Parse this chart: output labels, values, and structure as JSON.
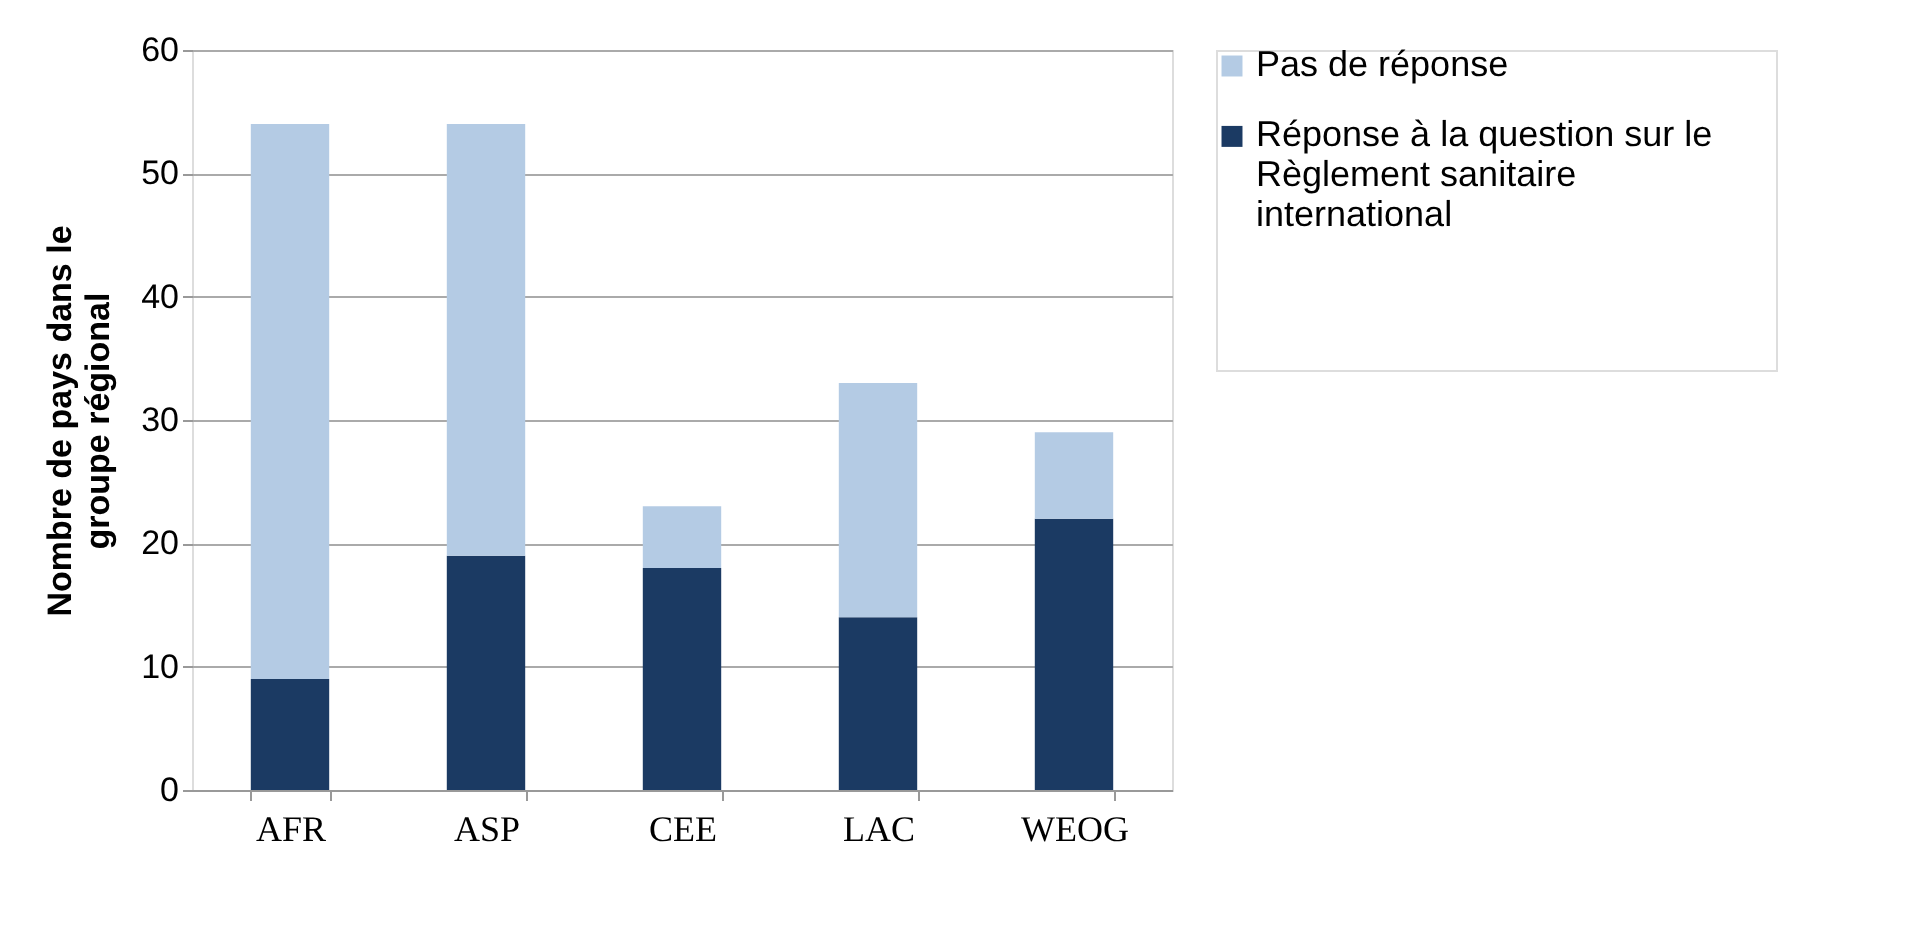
{
  "chart_data": {
    "type": "bar",
    "stacked": true,
    "ylabel": "Nombre de pays dans le groupe régional",
    "categories": [
      "AFR",
      "ASP",
      "CEE",
      "LAC",
      "WEOG"
    ],
    "series": [
      {
        "name": "Réponse à la question sur le Règlement sanitaire international",
        "color": "#1b3a63",
        "values": [
          9,
          19,
          18,
          14,
          22
        ]
      },
      {
        "name": "Pas de réponse",
        "color": "#b4cbe4",
        "values": [
          45,
          35,
          5,
          19,
          7
        ]
      }
    ],
    "ylim": [
      0,
      60
    ],
    "yticks": [
      0,
      10,
      20,
      30,
      40,
      50,
      60
    ],
    "grid": "y",
    "legend": "right"
  }
}
